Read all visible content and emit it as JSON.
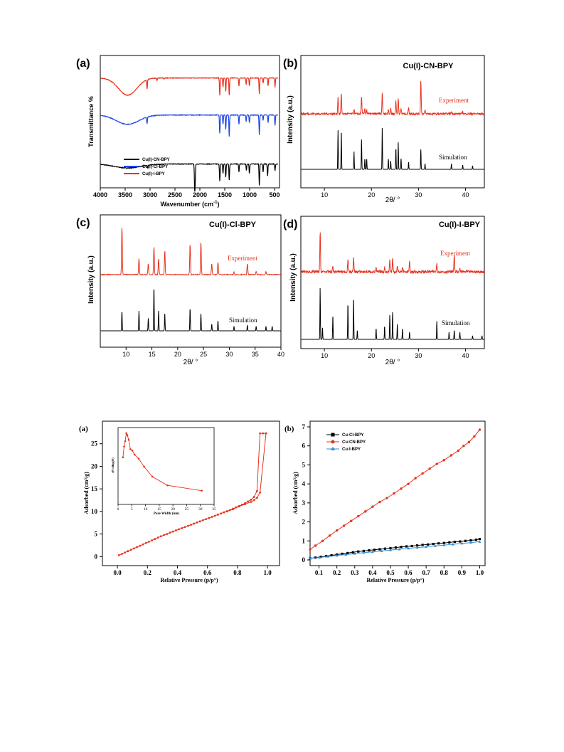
{
  "colors": {
    "red": "#e8321e",
    "blue": "#1f46e6",
    "black": "#000000",
    "lightblue": "#2f8fd8"
  },
  "chart_data": [
    {
      "id": "ftir",
      "type": "line",
      "panel_label": "(a)",
      "ylabel": "Transmittance %",
      "xlabel_main": "Wavenumber (cm",
      "xlabel_sup": "-1",
      "xlabel_end": ")",
      "xlim": [
        4000,
        400
      ],
      "x_ticks": [
        "4000",
        "3500",
        "3000",
        "2500",
        "2000",
        "1500",
        "1000",
        "500"
      ],
      "series": [
        {
          "name": "Cu(I)-CN-BPY",
          "color": "#000000",
          "baseline": 0.18,
          "broad": [
            [
              3450,
              0.03,
              380
            ]
          ],
          "peaks": [
            [
              3050,
              0.02
            ],
            [
              2105,
              0.16
            ],
            [
              2095,
              0.12
            ],
            [
              1600,
              0.13
            ],
            [
              1535,
              0.07
            ],
            [
              1480,
              0.1
            ],
            [
              1410,
              0.12
            ],
            [
              1215,
              0.06
            ],
            [
              1065,
              0.05
            ],
            [
              1005,
              0.07
            ],
            [
              805,
              0.16
            ],
            [
              730,
              0.06
            ],
            [
              640,
              0.09
            ],
            [
              490,
              0.05
            ]
          ]
        },
        {
          "name": "Cu(I)-Cl-BPY",
          "color": "#1f46e6",
          "baseline": 0.55,
          "broad": [
            [
              3450,
              0.07,
              320
            ]
          ],
          "peaks": [
            [
              3060,
              0.05
            ],
            [
              1600,
              0.14
            ],
            [
              1535,
              0.07
            ],
            [
              1480,
              0.11
            ],
            [
              1410,
              0.16
            ],
            [
              1215,
              0.07
            ],
            [
              1070,
              0.05
            ],
            [
              1005,
              0.06
            ],
            [
              805,
              0.15
            ],
            [
              730,
              0.04
            ],
            [
              630,
              0.06
            ],
            [
              490,
              0.08
            ]
          ]
        },
        {
          "name": "Cu(I)-I-BPY",
          "color": "#e8321e",
          "baseline": 0.83,
          "broad": [
            [
              3450,
              0.13,
              260
            ]
          ],
          "peaks": [
            [
              3060,
              0.07
            ],
            [
              2860,
              0.02
            ],
            [
              2720,
              0.01
            ],
            [
              1600,
              0.13
            ],
            [
              1535,
              0.07
            ],
            [
              1480,
              0.1
            ],
            [
              1410,
              0.13
            ],
            [
              1215,
              0.06
            ],
            [
              1070,
              0.05
            ],
            [
              1005,
              0.06
            ],
            [
              805,
              0.12
            ],
            [
              730,
              0.04
            ],
            [
              630,
              0.06
            ],
            [
              490,
              0.07
            ]
          ]
        }
      ]
    },
    {
      "id": "xrd-cn",
      "type": "line",
      "panel_label": "(b)",
      "title": "Cu(I)-CN-BPY",
      "ylabel": "Intensity (a.u.)",
      "xlabel": "2θ/ °",
      "xlim": [
        5,
        44
      ],
      "x_ticks": [
        "10",
        "20",
        "30",
        "40"
      ],
      "exp_label": "Experiment",
      "sim_label": "Simulation",
      "peaks": [
        [
          12.9,
          0.55
        ],
        [
          13.6,
          0.55
        ],
        [
          16.3,
          0.25
        ],
        [
          17.9,
          0.42
        ],
        [
          18.6,
          0.15
        ],
        [
          19.0,
          0.15
        ],
        [
          22.3,
          0.58
        ],
        [
          23.6,
          0.15
        ],
        [
          24.1,
          0.12
        ],
        [
          25.2,
          0.3
        ],
        [
          25.7,
          0.38
        ],
        [
          26.3,
          0.15
        ],
        [
          27.9,
          0.1
        ],
        [
          30.5,
          0.28
        ],
        [
          31.4,
          0.08
        ],
        [
          37.0,
          0.08
        ],
        [
          39.4,
          0.06
        ],
        [
          41.5,
          0.05
        ]
      ],
      "exp_peaks": [
        [
          12.9,
          0.4
        ],
        [
          13.6,
          0.5
        ],
        [
          16.3,
          0.12
        ],
        [
          17.9,
          0.42
        ],
        [
          18.6,
          0.12
        ],
        [
          19.0,
          0.1
        ],
        [
          22.3,
          0.5
        ],
        [
          23.6,
          0.12
        ],
        [
          24.1,
          0.12
        ],
        [
          25.2,
          0.32
        ],
        [
          25.7,
          0.38
        ],
        [
          26.3,
          0.12
        ],
        [
          27.9,
          0.17
        ],
        [
          30.5,
          0.8
        ],
        [
          31.4,
          0.08
        ],
        [
          37.0,
          0.05
        ],
        [
          39.4,
          0.06
        ]
      ]
    },
    {
      "id": "xrd-cl",
      "type": "line",
      "panel_label": "(c)",
      "title": "Cu(I)-Cl-BPY",
      "ylabel": "Intensity (a.u.)",
      "xlabel": "2θ/ °",
      "xlim": [
        5,
        40
      ],
      "x_ticks": [
        "10",
        "15",
        "20",
        "25",
        "30",
        "35",
        "40"
      ],
      "exp_label": "Experiment",
      "sim_label": "Simulation",
      "peaks": [
        [
          9.2,
          0.35
        ],
        [
          12.5,
          0.35
        ],
        [
          14.3,
          0.22
        ],
        [
          15.4,
          0.78
        ],
        [
          16.3,
          0.35
        ],
        [
          17.5,
          0.3
        ],
        [
          22.4,
          0.4
        ],
        [
          24.5,
          0.3
        ],
        [
          26.6,
          0.12
        ],
        [
          27.8,
          0.18
        ],
        [
          30.9,
          0.08
        ],
        [
          33.5,
          0.1
        ],
        [
          35.2,
          0.08
        ],
        [
          37.1,
          0.08
        ],
        [
          38.3,
          0.08
        ]
      ],
      "exp_peaks": [
        [
          9.2,
          0.95
        ],
        [
          12.5,
          0.32
        ],
        [
          14.3,
          0.22
        ],
        [
          15.4,
          0.55
        ],
        [
          16.3,
          0.32
        ],
        [
          17.5,
          0.48
        ],
        [
          22.4,
          0.6
        ],
        [
          24.5,
          0.65
        ],
        [
          26.6,
          0.22
        ],
        [
          27.8,
          0.25
        ],
        [
          30.9,
          0.06
        ],
        [
          33.5,
          0.22
        ],
        [
          35.2,
          0.07
        ],
        [
          37.1,
          0.06
        ]
      ]
    },
    {
      "id": "xrd-i",
      "type": "line",
      "panel_label": "(d)",
      "title": "Cu(I)-I-BPY",
      "ylabel": "Intensity (a.u.)",
      "xlabel": "2θ/ °",
      "xlim": [
        5,
        44
      ],
      "x_ticks": [
        "10",
        "20",
        "30",
        "40"
      ],
      "exp_label": "Experiment",
      "sim_label": "Simulation",
      "peaks": [
        [
          9.1,
          0.85
        ],
        [
          9.6,
          0.2
        ],
        [
          11.8,
          0.4
        ],
        [
          15.0,
          0.6
        ],
        [
          16.2,
          0.7
        ],
        [
          17.0,
          0.15
        ],
        [
          21.0,
          0.18
        ],
        [
          22.8,
          0.22
        ],
        [
          23.9,
          0.4
        ],
        [
          24.5,
          0.45
        ],
        [
          25.5,
          0.25
        ],
        [
          26.6,
          0.18
        ],
        [
          28.1,
          0.12
        ],
        [
          33.9,
          0.3
        ],
        [
          36.5,
          0.12
        ],
        [
          37.6,
          0.15
        ],
        [
          38.8,
          0.12
        ],
        [
          41.5,
          0.06
        ],
        [
          43.5,
          0.06
        ]
      ],
      "exp_peaks": [
        [
          9.1,
          0.9
        ],
        [
          11.8,
          0.12
        ],
        [
          15.0,
          0.3
        ],
        [
          16.2,
          0.32
        ],
        [
          21.0,
          0.08
        ],
        [
          22.8,
          0.1
        ],
        [
          23.9,
          0.27
        ],
        [
          24.5,
          0.3
        ],
        [
          25.5,
          0.12
        ],
        [
          26.6,
          0.1
        ],
        [
          28.1,
          0.22
        ],
        [
          33.9,
          0.2
        ],
        [
          37.6,
          0.4
        ],
        [
          38.8,
          0.06
        ]
      ]
    },
    {
      "id": "bet-a",
      "type": "line",
      "panel_label": "(a)",
      "xlabel": "Relative Pressure (p/p°)",
      "ylabel": "Adsorbed (cm³/g)",
      "xlim": [
        -0.1,
        1.08
      ],
      "ylim": [
        -2,
        30
      ],
      "x_ticks": [
        0.0,
        0.2,
        0.4,
        0.6,
        0.8,
        1.0
      ],
      "x_tick_labels": [
        "0.0",
        "0.2",
        "0.4",
        "0.6",
        "0.8",
        "1.0"
      ],
      "y_ticks": [
        0,
        5,
        10,
        15,
        20,
        25
      ],
      "y_tick_labels": [
        "0",
        "5",
        "10",
        "15",
        "20",
        "25"
      ],
      "series": [
        {
          "name": "adsorption",
          "color": "#e8321e",
          "x": [
            0.01,
            0.03,
            0.05,
            0.07,
            0.09,
            0.11,
            0.13,
            0.15,
            0.17,
            0.19,
            0.21,
            0.23,
            0.25,
            0.27,
            0.29,
            0.31,
            0.33,
            0.35,
            0.37,
            0.39,
            0.41,
            0.43,
            0.45,
            0.47,
            0.49,
            0.51,
            0.53,
            0.55,
            0.57,
            0.59,
            0.61,
            0.63,
            0.65,
            0.67,
            0.69,
            0.71,
            0.73,
            0.75,
            0.77,
            0.79,
            0.81,
            0.83,
            0.85,
            0.87,
            0.89,
            0.91,
            0.93,
            0.95,
            0.97,
            0.99
          ],
          "y": [
            0.3,
            0.6,
            0.9,
            1.2,
            1.5,
            1.8,
            2.1,
            2.4,
            2.7,
            3.0,
            3.3,
            3.6,
            3.9,
            4.2,
            4.5,
            4.75,
            5.0,
            5.3,
            5.55,
            5.8,
            6.05,
            6.3,
            6.55,
            6.8,
            7.05,
            7.3,
            7.55,
            7.8,
            8.05,
            8.3,
            8.55,
            8.8,
            9.05,
            9.3,
            9.55,
            9.8,
            10.05,
            10.3,
            10.6,
            10.9,
            11.2,
            11.5,
            11.8,
            12.2,
            12.6,
            13.2,
            14.5,
            27.3,
            27.3,
            27.3
          ]
        },
        {
          "name": "desorption",
          "color": "#e8321e",
          "x": [
            0.99,
            0.95,
            0.93,
            0.91,
            0.89,
            0.85,
            0.81,
            0.77,
            0.73
          ],
          "y": [
            27.3,
            14.2,
            13.0,
            12.5,
            12.1,
            11.6,
            11.1,
            10.5,
            10.0
          ]
        }
      ],
      "inset": {
        "xlabel": "Pore Width (nm)",
        "ylabel": "dV/dlog(D)",
        "xlim": [
          0,
          35
        ],
        "x_ticks": [
          0,
          5,
          10,
          15,
          20,
          25,
          30,
          35
        ],
        "x_tick_labels": [
          "0",
          "5",
          "10",
          "15",
          "20",
          "25",
          "30",
          "35"
        ],
        "x": [
          1.8,
          2.2,
          2.6,
          3.0,
          3.4,
          3.9,
          4.5,
          5.2,
          6.0,
          7.5,
          9.5,
          12.5,
          18.0,
          30.5
        ],
        "y": [
          0.62,
          0.78,
          0.86,
          0.98,
          0.95,
          0.88,
          0.74,
          0.72,
          0.66,
          0.6,
          0.48,
          0.33,
          0.2,
          0.12
        ]
      }
    },
    {
      "id": "bet-b",
      "type": "line",
      "panel_label": "(b)",
      "xlabel": "Relative Pressure (p/p°)",
      "ylabel": "Adsorbed (cm³/g)",
      "xlim": [
        0.05,
        1.03
      ],
      "ylim": [
        -0.3,
        7.3
      ],
      "x_ticks": [
        0.1,
        0.2,
        0.3,
        0.4,
        0.5,
        0.6,
        0.7,
        0.8,
        0.9,
        1.0
      ],
      "x_tick_labels": [
        "0.1",
        "0.2",
        "0.3",
        "0.4",
        "0.5",
        "0.6",
        "0.7",
        "0.8",
        "0.9",
        "1.0"
      ],
      "y_ticks": [
        0,
        1,
        2,
        3,
        4,
        5,
        6,
        7
      ],
      "y_tick_labels": [
        "0",
        "1",
        "2",
        "3",
        "4",
        "5",
        "6",
        "7"
      ],
      "legend": [
        "Cu-Cl-BPY",
        "Cu-CN-BPY",
        "Cu-I-BPY"
      ],
      "series": [
        {
          "name": "Cu-Cl-BPY",
          "color": "#000000",
          "x": [
            0.05,
            0.08,
            0.11,
            0.14,
            0.17,
            0.2,
            0.23,
            0.26,
            0.29,
            0.32,
            0.35,
            0.38,
            0.41,
            0.44,
            0.47,
            0.5,
            0.53,
            0.56,
            0.59,
            0.62,
            0.65,
            0.68,
            0.71,
            0.74,
            0.77,
            0.8,
            0.83,
            0.86,
            0.89,
            0.92,
            0.95,
            0.98,
            1.0
          ],
          "y": [
            0.08,
            0.12,
            0.16,
            0.2,
            0.24,
            0.28,
            0.32,
            0.36,
            0.4,
            0.44,
            0.47,
            0.5,
            0.53,
            0.56,
            0.59,
            0.62,
            0.65,
            0.68,
            0.71,
            0.73,
            0.76,
            0.79,
            0.81,
            0.84,
            0.87,
            0.89,
            0.92,
            0.95,
            0.97,
            1.0,
            1.03,
            1.06,
            1.1
          ]
        },
        {
          "name": "Cu-CN-BPY",
          "color": "#e8321e",
          "x": [
            0.05,
            0.08,
            0.12,
            0.16,
            0.2,
            0.24,
            0.28,
            0.32,
            0.36,
            0.4,
            0.44,
            0.48,
            0.52,
            0.56,
            0.6,
            0.64,
            0.68,
            0.72,
            0.76,
            0.8,
            0.84,
            0.88,
            0.91,
            0.94,
            0.97,
            1.0
          ],
          "y": [
            0.55,
            0.75,
            1.0,
            1.28,
            1.55,
            1.8,
            2.05,
            2.3,
            2.55,
            2.8,
            3.05,
            3.25,
            3.5,
            3.75,
            4.0,
            4.3,
            4.55,
            4.8,
            5.05,
            5.25,
            5.5,
            5.75,
            6.0,
            6.2,
            6.5,
            6.85
          ]
        },
        {
          "name": "Cu-I-BPY",
          "color": "#2f8fd8",
          "x": [
            0.05,
            0.1,
            0.15,
            0.2,
            0.25,
            0.3,
            0.35,
            0.4,
            0.45,
            0.5,
            0.55,
            0.6,
            0.65,
            0.7,
            0.75,
            0.8,
            0.85,
            0.9,
            0.95,
            1.0
          ],
          "y": [
            0.08,
            0.13,
            0.18,
            0.23,
            0.28,
            0.33,
            0.38,
            0.42,
            0.47,
            0.52,
            0.56,
            0.61,
            0.65,
            0.69,
            0.74,
            0.78,
            0.82,
            0.87,
            0.91,
            0.96
          ]
        }
      ]
    }
  ]
}
